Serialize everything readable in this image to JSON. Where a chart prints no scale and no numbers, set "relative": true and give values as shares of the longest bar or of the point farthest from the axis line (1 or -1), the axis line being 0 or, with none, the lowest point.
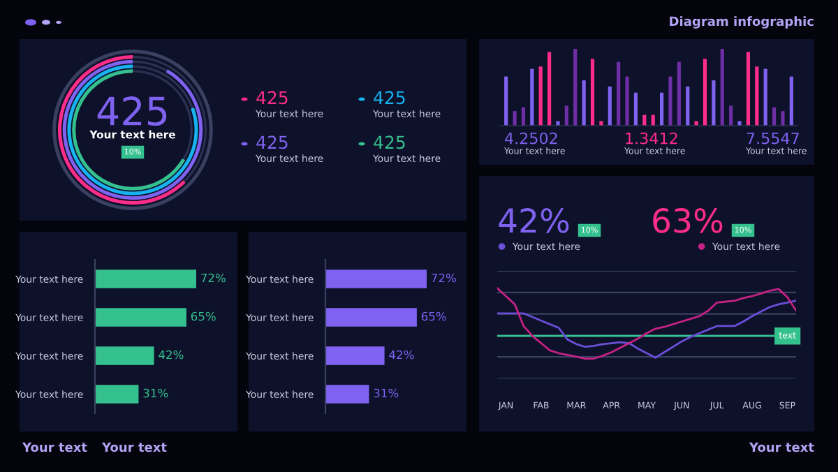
{
  "chart_data": [
    {
      "type": "other",
      "annotations": [
        "425",
        "Your text here",
        "10%",
        "425",
        "Your text here",
        "425",
        "Your text here",
        "425",
        "Your text here",
        "425",
        "Your text here"
      ],
      "colors": [
        "#ff2d8a",
        "#17b3f0",
        "#7f62f0",
        "#35c08f"
      ]
    },
    {
      "type": "bar",
      "relative": true,
      "categories": [
        null,
        null,
        null,
        null,
        null,
        null,
        null,
        null,
        null,
        null,
        null,
        null,
        null,
        null,
        null,
        null,
        null,
        null,
        null,
        null,
        null,
        null,
        null,
        null,
        null,
        null,
        null,
        null,
        null,
        null,
        null,
        null,
        null,
        null
      ],
      "values": [
        0.64,
        0.19,
        0.24,
        0.74,
        0.77,
        0.96,
        0.06,
        0.26,
        1.0,
        0.59,
        0.87,
        0.06,
        0.51,
        0.83,
        0.64,
        0.43,
        0.14,
        0.14,
        0.43,
        0.64,
        0.83,
        0.51,
        0.06,
        0.87,
        0.59,
        1.0,
        0.26,
        0.06,
        0.96,
        0.77,
        0.74,
        0.24,
        0.19,
        0.64
      ],
      "colors": [
        "#7f62f0",
        "#6e2ea6",
        "#6e2ea6",
        "#7f62f0",
        "#ff2d8a",
        "#ff2d8a",
        "#7f62f0",
        "#6e2ea6",
        "#6e2ea6",
        "#7f62f0",
        "#ff2d8a",
        "#ff2d8a",
        "#7f62f0",
        "#6e2ea6",
        "#6e2ea6",
        "#7f62f0",
        "#ff2d8a",
        "#ff2d8a",
        "#7f62f0",
        "#6e2ea6",
        "#6e2ea6",
        "#7f62f0",
        "#ff2d8a",
        "#ff2d8a",
        "#7f62f0",
        "#6e2ea6",
        "#6e2ea6",
        "#7f62f0",
        "#ff2d8a",
        "#ff2d8a",
        "#7f62f0",
        "#6e2ea6",
        "#6e2ea6",
        "#7f62f0"
      ],
      "annotations": [
        "4.2502",
        "Your text here",
        "1.3412",
        "Your text here",
        "7.5547",
        "Your text here"
      ]
    },
    {
      "type": "bar",
      "orientation": "horizontal",
      "tick_labels": "y",
      "categories": [
        "Your text here",
        "Your text here",
        "Your text here",
        "Your text here"
      ],
      "values": [
        72,
        65,
        42,
        31
      ],
      "value_labels": [
        "72%",
        "65%",
        "42%",
        "31%"
      ],
      "color": "#35c08f"
    },
    {
      "type": "bar",
      "orientation": "horizontal",
      "tick_labels": "y",
      "categories": [
        "Your text here",
        "Your text here",
        "Your text here",
        "Your text here"
      ],
      "values": [
        72,
        65,
        42,
        31
      ],
      "value_labels": [
        "72%",
        "65%",
        "42%",
        "31%"
      ],
      "color": "#7f62f0"
    },
    {
      "type": "line",
      "relative": true,
      "tick_labels": "x",
      "grid": "y",
      "legend": "top left",
      "categories": [
        null,
        "JAN",
        null,
        null,
        null,
        "FAB",
        null,
        null,
        null,
        "MAR",
        null,
        null,
        null,
        "APR",
        null,
        null,
        null,
        "MAY",
        null,
        null,
        null,
        "JUN",
        null,
        null,
        null,
        "JUL",
        null,
        null,
        null,
        "AUG",
        null,
        null,
        null,
        "SEP",
        null
      ],
      "series": [
        {
          "name": "Your text here",
          "color": "#6a4fd8",
          "values": [
            0.72,
            0.72,
            0.72,
            0.72,
            0.68,
            0.64,
            0.6,
            0.56,
            0.43,
            0.38,
            0.35,
            0.36,
            0.38,
            0.39,
            0.4,
            0.39,
            0.33,
            0.28,
            0.23,
            0.29,
            0.35,
            0.41,
            0.46,
            0.5,
            0.54,
            0.58,
            0.58,
            0.58,
            0.63,
            0.69,
            0.74,
            0.79,
            0.82,
            0.84,
            0.86
          ]
        },
        {
          "name": "Your text here",
          "color": "#c42284",
          "values": [
            1.0,
            0.91,
            0.82,
            0.58,
            0.47,
            0.39,
            0.31,
            0.28,
            0.26,
            0.24,
            0.22,
            0.22,
            0.25,
            0.29,
            0.34,
            0.39,
            0.44,
            0.5,
            0.55,
            0.57,
            0.6,
            0.63,
            0.66,
            0.69,
            0.75,
            0.84,
            0.85,
            0.86,
            0.89,
            0.91,
            0.94,
            0.97,
            0.99,
            0.9,
            0.75
          ]
        }
      ],
      "ref_lines": [
        {
          "axis": "y",
          "value": 0.47,
          "label": "text",
          "color": "#35c08f"
        }
      ],
      "annotations": [
        "42%",
        "10%",
        "63%",
        "10%"
      ]
    },
    {
      "type": "other",
      "title": "Diagram infographic",
      "annotations": [
        "Your text",
        "Your text",
        "Your text"
      ]
    }
  ]
}
